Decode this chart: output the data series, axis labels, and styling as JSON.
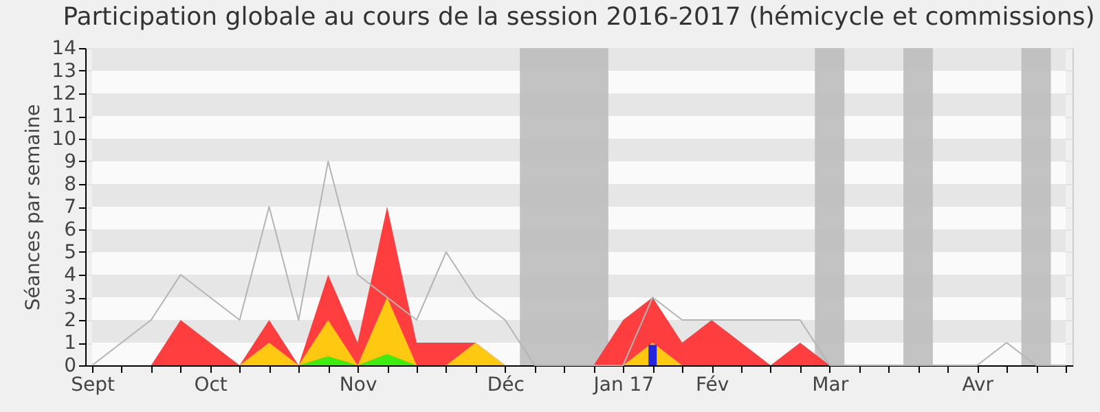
{
  "chart_data": {
    "type": "area",
    "title": "Participation globale au cours de la session 2016-2017 (hémicycle et commissions)",
    "ylabel": "Séances par semaine",
    "categories": [
      "Sept",
      null,
      null,
      null,
      "Oct",
      null,
      null,
      null,
      null,
      "Nov",
      null,
      null,
      null,
      null,
      "Déc",
      null,
      null,
      null,
      "Jan 17",
      null,
      null,
      "Fév",
      null,
      null,
      null,
      "Mar",
      null,
      null,
      null,
      null,
      "Avr",
      null,
      null,
      null
    ],
    "ylim": [
      0,
      14
    ],
    "yticks": [
      0,
      1,
      2,
      3,
      4,
      5,
      6,
      7,
      8,
      9,
      10,
      11,
      12,
      13,
      14
    ],
    "grid": "y",
    "series": [
      {
        "color": "#ff3535",
        "values": [
          0,
          0,
          0,
          2,
          1,
          0,
          2,
          0,
          4,
          1,
          7,
          1,
          1,
          1,
          0,
          0,
          0,
          0,
          2,
          3,
          1,
          2,
          1,
          0,
          1,
          0,
          0,
          0,
          0,
          0,
          0,
          0,
          0,
          0
        ]
      },
      {
        "color": "#ffd10f",
        "values": [
          0,
          0,
          0,
          0,
          0,
          0,
          1,
          0,
          2,
          0,
          3,
          0,
          0,
          1,
          0,
          0,
          0,
          0,
          0,
          1,
          0,
          0,
          0,
          0,
          0,
          0,
          0,
          0,
          0,
          0,
          0,
          0,
          0,
          0
        ]
      },
      {
        "color": "#33ee11",
        "values": [
          0,
          0,
          0,
          0,
          0,
          0,
          0,
          0,
          0.4,
          0,
          0.5,
          0,
          0,
          0,
          0,
          0,
          0,
          0,
          0,
          0,
          0,
          0,
          0,
          0,
          0,
          0,
          0,
          0,
          0,
          0,
          0,
          0,
          0,
          0
        ]
      },
      {
        "type": "line",
        "color": "#b4b4b4",
        "values": [
          0,
          1,
          2,
          4,
          3,
          2,
          7,
          2,
          9,
          4,
          3,
          2,
          5,
          3,
          2,
          0,
          0,
          0,
          0,
          3,
          2,
          2,
          2,
          2,
          2,
          0,
          0,
          0,
          0,
          0,
          0,
          1,
          0,
          0
        ]
      },
      {
        "type": "bar",
        "color": "#2424e0",
        "values": [
          null,
          null,
          null,
          null,
          null,
          null,
          null,
          null,
          null,
          null,
          null,
          null,
          null,
          null,
          null,
          null,
          null,
          null,
          null,
          0.9,
          null,
          null,
          null,
          null,
          null,
          null,
          null,
          null,
          null,
          null,
          null,
          null,
          null,
          null
        ]
      }
    ]
  }
}
